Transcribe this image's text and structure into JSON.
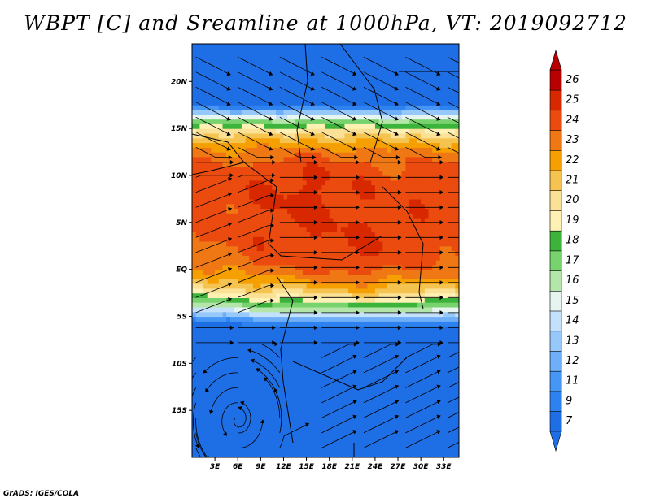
{
  "title": "WBPT [C] and Sreamline at 1000hPa, VT: 2019092712",
  "credit": "GrADS: IGES/COLA",
  "chart_data": {
    "type": "heatmap",
    "variable": "WBPT [C]",
    "overlay": "streamlines",
    "level": "1000hPa",
    "valid_time": "2019092712",
    "lon_range": [
      0,
      35
    ],
    "lat_range": [
      -20,
      24
    ],
    "x_ticks": [
      "3E",
      "6E",
      "9E",
      "12E",
      "15E",
      "18E",
      "21E",
      "24E",
      "27E",
      "30E",
      "33E"
    ],
    "x_tick_values": [
      3,
      6,
      9,
      12,
      15,
      18,
      21,
      24,
      27,
      30,
      33
    ],
    "y_ticks": [
      "20N",
      "15N",
      "10N",
      "5N",
      "EQ",
      "5S",
      "10S",
      "15S"
    ],
    "y_tick_values": [
      20,
      15,
      10,
      5,
      0,
      -5,
      -10,
      -15
    ],
    "colorbar": {
      "labels": [
        "7",
        "9",
        "11",
        "12",
        "13",
        "14",
        "15",
        "16",
        "17",
        "18",
        "19",
        "20",
        "21",
        "22",
        "23",
        "24",
        "25",
        "26"
      ],
      "levels": [
        7,
        9,
        11,
        12,
        13,
        14,
        15,
        16,
        17,
        18,
        19,
        20,
        21,
        22,
        23,
        24,
        25,
        26
      ],
      "colors": [
        "#1e6ee6",
        "#2d82f0",
        "#4696f5",
        "#6eaff8",
        "#96c8fa",
        "#c3e1fb",
        "#e6f5f0",
        "#b4e6aa",
        "#78d26e",
        "#3cb43c",
        "#fff0b4",
        "#fae196",
        "#f5c350",
        "#f5a000",
        "#f07814",
        "#eb4b0f",
        "#d72800",
        "#b90000"
      ],
      "under_color": "#1e6ee6",
      "over_color": "#b90000"
    }
  }
}
